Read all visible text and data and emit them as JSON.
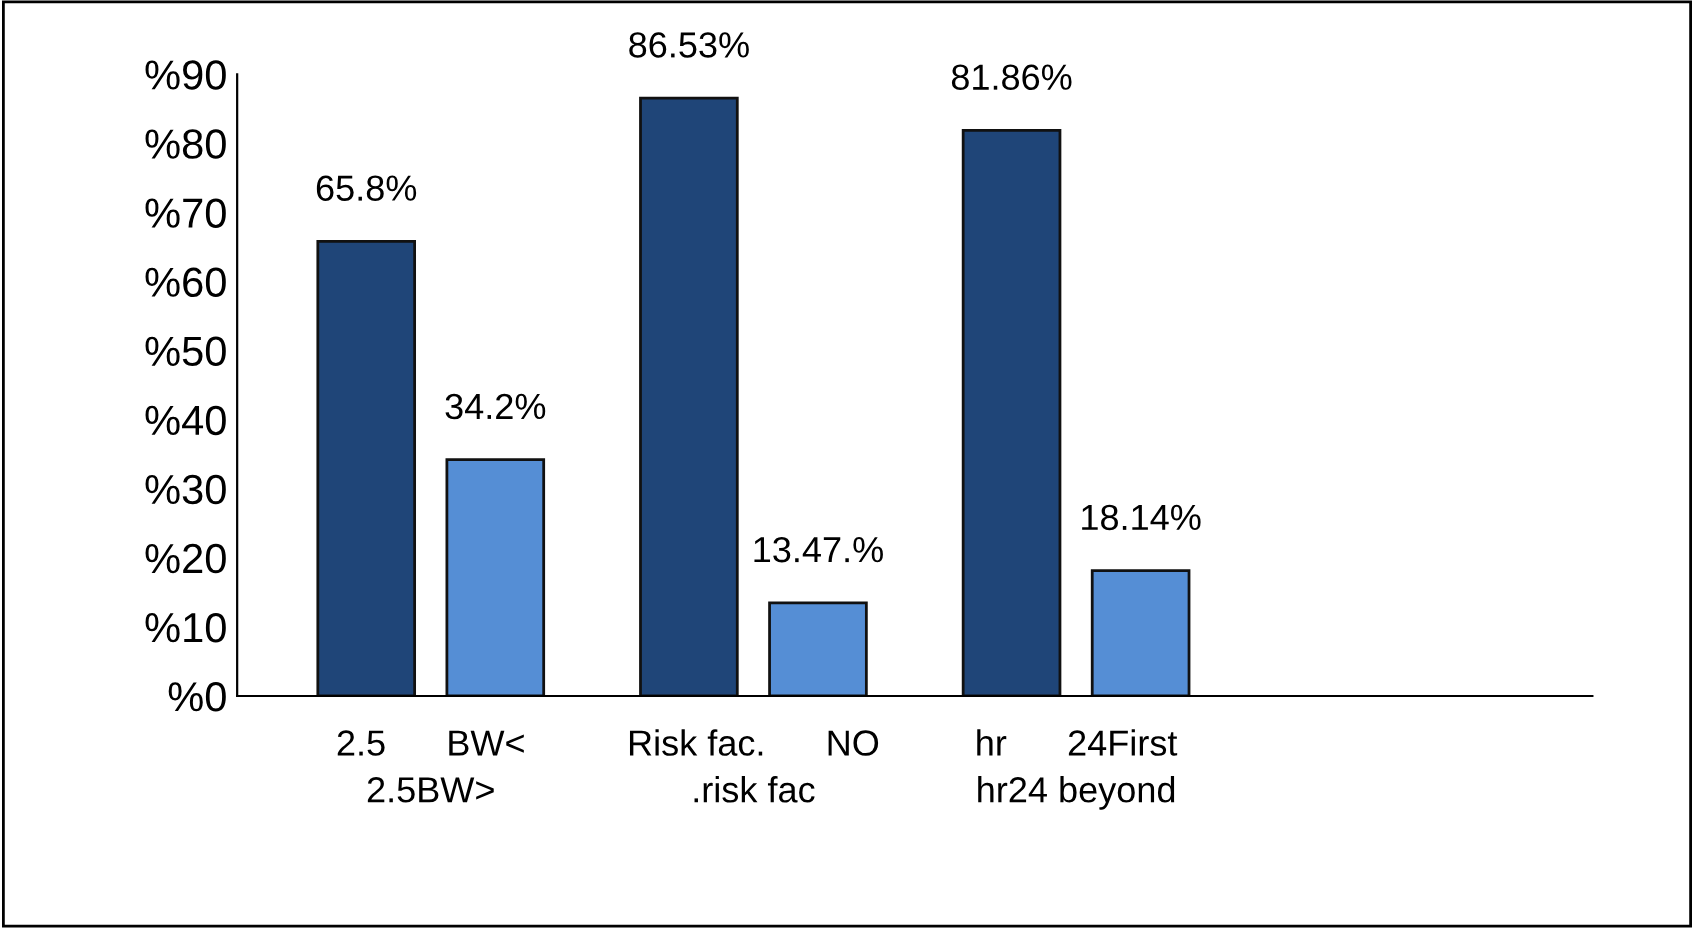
{
  "chart_data": {
    "type": "bar",
    "categories": [
      "2.5      BW<\n2.5BW>",
      "Risk fac.      NO\n.risk fac",
      "hr      24First\nhr24 beyond",
      null
    ],
    "series": [
      {
        "color": "#1f4578",
        "values": [
          65.8,
          86.53,
          81.86,
          null
        ],
        "value_labels": [
          "65.8%",
          "86.53%",
          "81.86%",
          null
        ]
      },
      {
        "color": "#558ed5",
        "values": [
          34.2,
          13.47,
          18.14,
          null
        ],
        "value_labels": [
          "34.2%",
          "13.47.%",
          "18.14%",
          null
        ]
      }
    ],
    "ylim": [
      0,
      90
    ],
    "yticks": [
      {
        "value": 0,
        "label": "%0"
      },
      {
        "value": 10,
        "label": "%10"
      },
      {
        "value": 20,
        "label": "%20"
      },
      {
        "value": 30,
        "label": "%30"
      },
      {
        "value": 40,
        "label": "%40"
      },
      {
        "value": 50,
        "label": "%50"
      },
      {
        "value": 60,
        "label": "%60"
      },
      {
        "value": 70,
        "label": "%70"
      },
      {
        "value": 80,
        "label": "%80"
      },
      {
        "value": 90,
        "label": "%90"
      }
    ],
    "grid": false,
    "legend": false
  }
}
